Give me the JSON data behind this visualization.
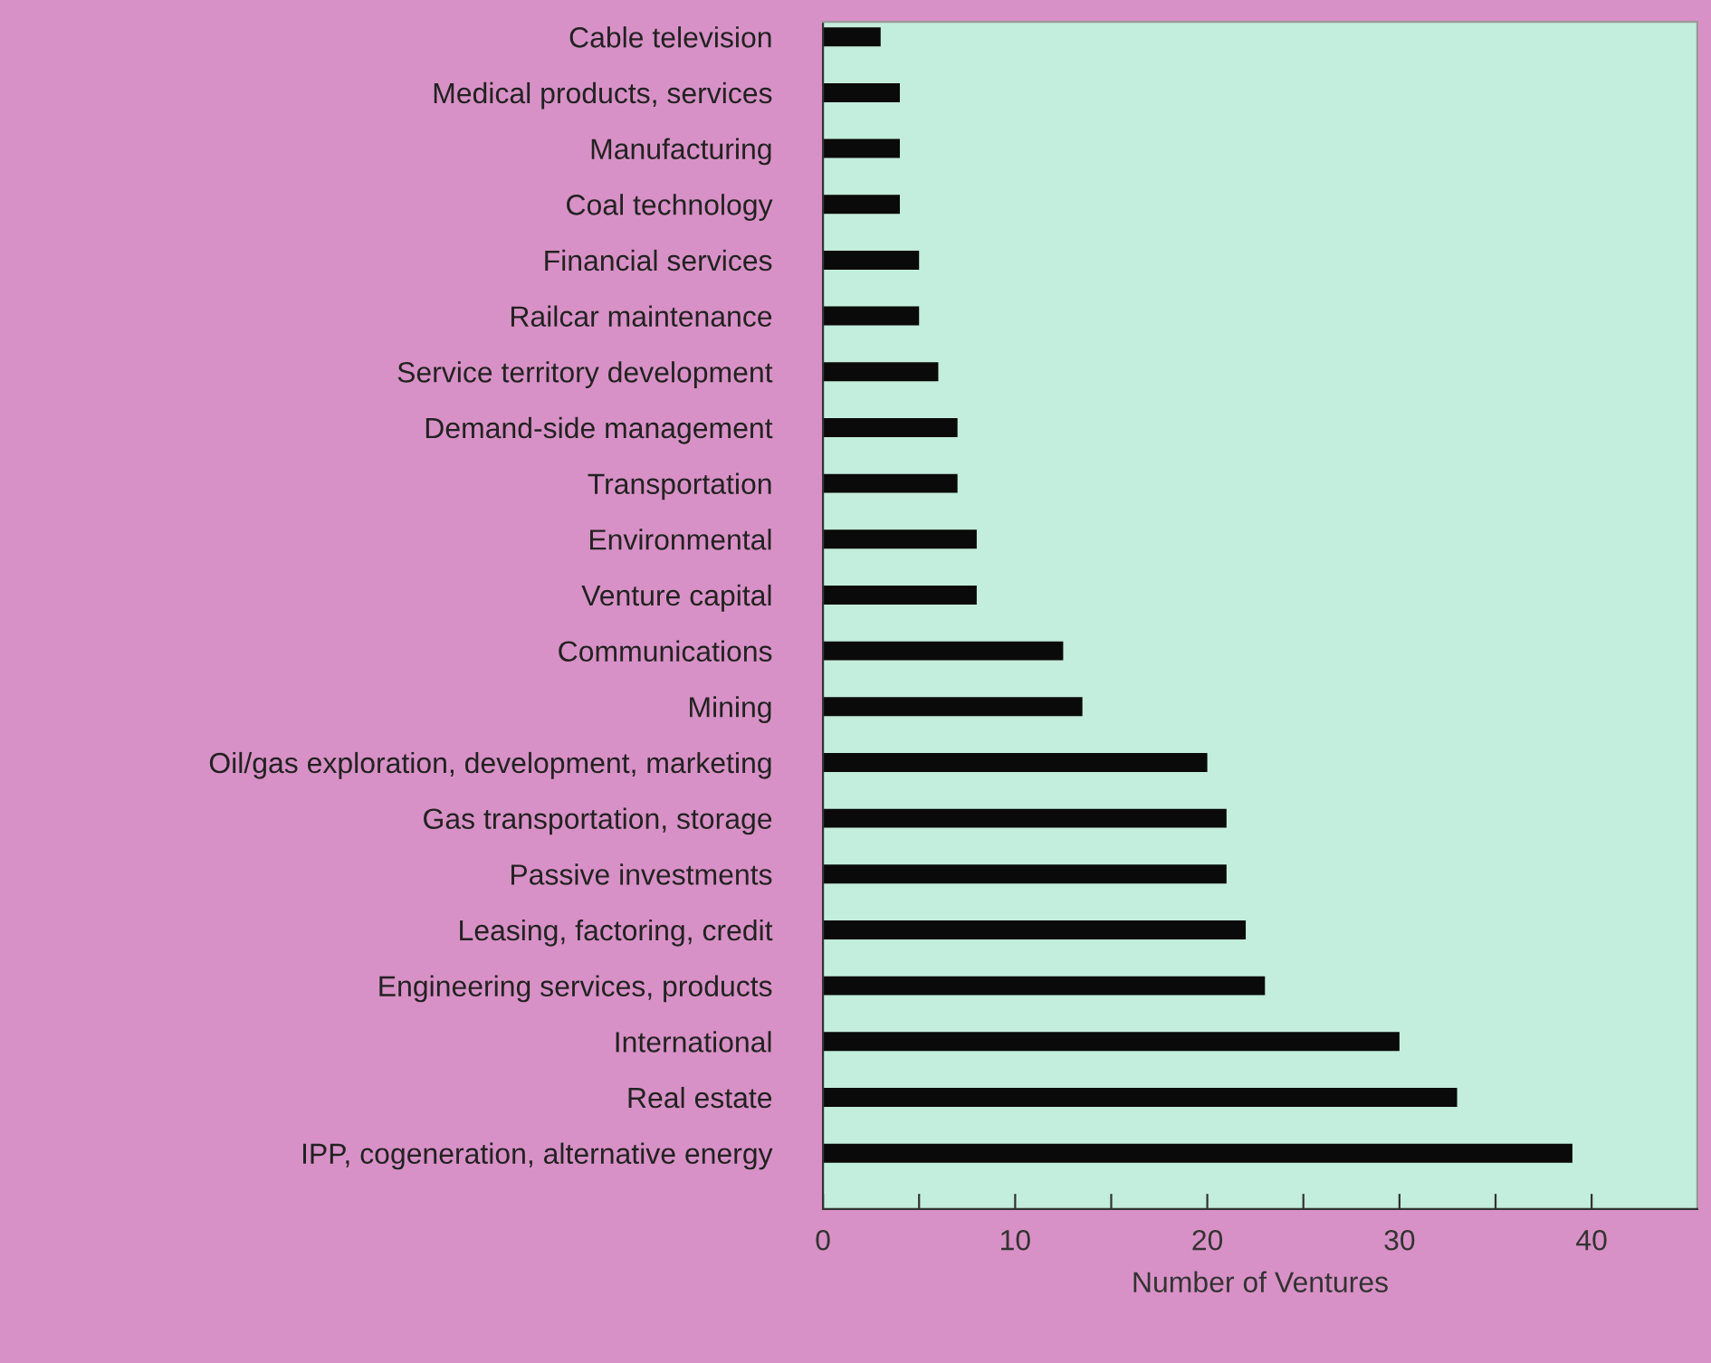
{
  "chart_data": {
    "type": "bar",
    "orientation": "horizontal",
    "xlabel": "Number of Ventures",
    "categories": [
      "Cable television",
      "Medical products, services",
      "Manufacturing",
      "Coal technology",
      "Financial services",
      "Railcar maintenance",
      "Service territory development",
      "Demand-side management",
      "Transportation",
      "Environmental",
      "Venture capital",
      "Communications",
      "Mining",
      "Oil/gas exploration, development, marketing",
      "Gas transportation, storage",
      "Passive investments",
      "Leasing, factoring, credit",
      "Engineering services, products",
      "International",
      "Real estate",
      "IPP, cogeneration, alternative energy"
    ],
    "values": [
      3,
      4,
      4,
      4,
      5,
      5,
      6,
      7,
      7,
      8,
      8,
      12.5,
      13.5,
      20,
      21,
      21,
      22,
      23,
      30,
      33,
      39
    ],
    "color": "#0a0a0a",
    "xlim": [
      0,
      45.5
    ],
    "xticks": [
      0,
      {
        "value": 5,
        "label": null
      },
      10,
      {
        "value": 15,
        "label": null
      },
      20,
      {
        "value": 25,
        "label": null
      },
      30,
      {
        "value": 35,
        "label": null
      },
      40
    ],
    "grid": false
  }
}
